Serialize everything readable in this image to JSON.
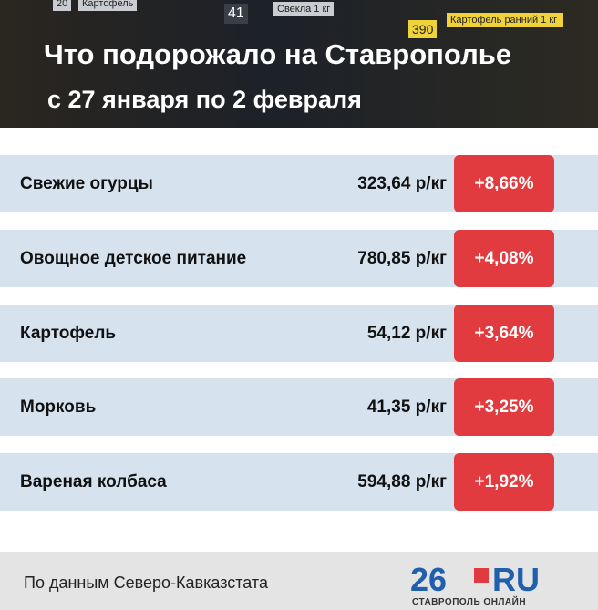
{
  "header": {
    "title": "Что подорожало на Ставрополье",
    "subtitle": "с 27 января по 2 февраля",
    "photo_labels": [
      "20",
      "Картофель",
      "41",
      "Свекла 1 кг",
      "390",
      "Картофель ранний 1 кг"
    ]
  },
  "table": {
    "rows": [
      [
        "Свежие огурцы",
        "323,64 р/кг",
        "+8,66%"
      ],
      [
        "Овощное детское питание",
        "780,85 р/кг",
        "+4,08%"
      ],
      [
        "Картофель",
        "54,12 р/кг",
        "+3,64%"
      ],
      [
        "Морковь",
        "41,35 р/кг",
        "+3,25%"
      ],
      [
        "Вареная колбаса",
        "594,88 р/кг",
        "+1,92%"
      ]
    ]
  },
  "footer": {
    "source": "По данным Северо-Кавказстата",
    "logo": {
      "number": "26",
      "domain": "RU",
      "tagline": "СТАВРОПОЛЬ ОНЛАЙН"
    }
  }
}
